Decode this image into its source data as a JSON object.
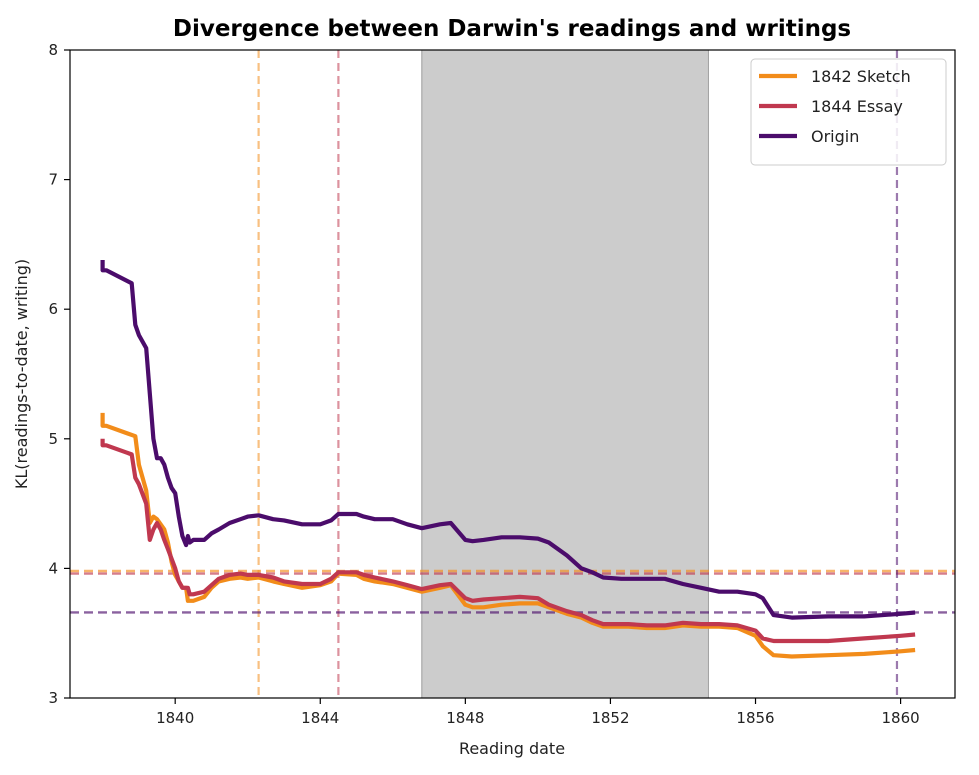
{
  "chart_data": {
    "type": "line",
    "title": "Divergence between Darwin's readings and writings",
    "xlabel": "Reading date",
    "ylabel": "KL(readings-to-date, writing)",
    "xlim": [
      1837.1,
      1861.5
    ],
    "ylim": [
      3,
      8
    ],
    "xticks": [
      1840,
      1844,
      1848,
      1852,
      1856,
      1860
    ],
    "yticks": [
      3,
      4,
      5,
      6,
      7,
      8
    ],
    "grid": false,
    "legend_position": "top-right",
    "shaded_region": {
      "x": [
        1846.8,
        1854.7
      ],
      "color": "#cccccc"
    },
    "series": [
      {
        "name": "1842 Sketch",
        "color": "#f28c1a",
        "reference_year": 1842.3,
        "reference_value": 3.98,
        "x": [
          1838.0,
          1838.0,
          1838.1,
          1838.9,
          1839.0,
          1839.2,
          1839.3,
          1839.4,
          1839.5,
          1839.7,
          1839.8,
          1839.9,
          1840.0,
          1840.1,
          1840.2,
          1840.3,
          1840.35,
          1840.4,
          1840.5,
          1840.8,
          1841.0,
          1841.2,
          1841.5,
          1841.8,
          1842.0,
          1842.3,
          1842.7,
          1843.0,
          1843.5,
          1844.0,
          1844.3,
          1844.5,
          1845.0,
          1845.2,
          1845.5,
          1846.0,
          1846.4,
          1846.8,
          1847.3,
          1847.6,
          1848.0,
          1848.2,
          1848.5,
          1849.0,
          1849.5,
          1850.0,
          1850.3,
          1850.8,
          1851.2,
          1851.5,
          1851.8,
          1852.3,
          1852.5,
          1853.0,
          1853.5,
          1854.0,
          1854.5,
          1855.0,
          1855.5,
          1856.0,
          1856.2,
          1856.5,
          1857.0,
          1858.0,
          1859.0,
          1860.0,
          1860.4
        ],
        "y": [
          5.2,
          5.1,
          5.1,
          5.02,
          4.8,
          4.6,
          4.35,
          4.4,
          4.38,
          4.3,
          4.2,
          4.05,
          3.95,
          3.9,
          3.85,
          3.85,
          3.75,
          3.75,
          3.75,
          3.78,
          3.85,
          3.9,
          3.92,
          3.93,
          3.92,
          3.93,
          3.9,
          3.88,
          3.85,
          3.87,
          3.9,
          3.96,
          3.95,
          3.92,
          3.9,
          3.88,
          3.85,
          3.82,
          3.85,
          3.87,
          3.72,
          3.7,
          3.7,
          3.72,
          3.73,
          3.73,
          3.7,
          3.65,
          3.62,
          3.58,
          3.55,
          3.55,
          3.55,
          3.54,
          3.54,
          3.56,
          3.55,
          3.55,
          3.54,
          3.48,
          3.4,
          3.33,
          3.32,
          3.33,
          3.34,
          3.36,
          3.37
        ]
      },
      {
        "name": "1844 Essay",
        "color": "#c0384f",
        "reference_year": 1844.5,
        "reference_value": 3.96,
        "x": [
          1838.0,
          1838.0,
          1838.1,
          1838.8,
          1838.9,
          1839.0,
          1839.2,
          1839.3,
          1839.4,
          1839.5,
          1839.6,
          1839.7,
          1839.8,
          1840.0,
          1840.1,
          1840.2,
          1840.35,
          1840.4,
          1840.5,
          1840.8,
          1841.0,
          1841.2,
          1841.5,
          1841.8,
          1842.0,
          1842.3,
          1842.7,
          1843.0,
          1843.5,
          1844.0,
          1844.3,
          1844.5,
          1845.0,
          1845.2,
          1845.5,
          1846.0,
          1846.4,
          1846.8,
          1847.3,
          1847.6,
          1848.0,
          1848.2,
          1848.5,
          1849.0,
          1849.5,
          1850.0,
          1850.3,
          1850.8,
          1851.2,
          1851.5,
          1851.8,
          1852.3,
          1852.5,
          1853.0,
          1853.5,
          1854.0,
          1854.5,
          1855.0,
          1855.5,
          1856.0,
          1856.2,
          1856.5,
          1857.0,
          1858.0,
          1859.0,
          1860.0,
          1860.4
        ],
        "y": [
          5.0,
          4.95,
          4.95,
          4.88,
          4.7,
          4.65,
          4.5,
          4.22,
          4.3,
          4.35,
          4.3,
          4.22,
          4.15,
          4.0,
          3.9,
          3.85,
          3.85,
          3.8,
          3.8,
          3.82,
          3.87,
          3.92,
          3.95,
          3.96,
          3.95,
          3.95,
          3.93,
          3.9,
          3.88,
          3.88,
          3.92,
          3.97,
          3.97,
          3.95,
          3.93,
          3.9,
          3.87,
          3.84,
          3.87,
          3.88,
          3.77,
          3.75,
          3.76,
          3.77,
          3.78,
          3.77,
          3.72,
          3.67,
          3.64,
          3.6,
          3.57,
          3.57,
          3.57,
          3.56,
          3.56,
          3.58,
          3.57,
          3.57,
          3.56,
          3.52,
          3.46,
          3.44,
          3.44,
          3.44,
          3.46,
          3.48,
          3.49
        ]
      },
      {
        "name": "Origin",
        "color": "#4b0c6b",
        "reference_year": 1859.9,
        "reference_value": 3.66,
        "x": [
          1838.0,
          1838.0,
          1838.1,
          1838.8,
          1838.9,
          1839.0,
          1839.2,
          1839.3,
          1839.4,
          1839.5,
          1839.6,
          1839.7,
          1839.8,
          1839.9,
          1840.0,
          1840.1,
          1840.2,
          1840.3,
          1840.35,
          1840.4,
          1840.5,
          1840.8,
          1841.0,
          1841.2,
          1841.5,
          1841.8,
          1842.0,
          1842.3,
          1842.7,
          1843.0,
          1843.5,
          1844.0,
          1844.3,
          1844.5,
          1845.0,
          1845.2,
          1845.5,
          1846.0,
          1846.4,
          1846.8,
          1847.3,
          1847.6,
          1848.0,
          1848.2,
          1848.5,
          1849.0,
          1849.5,
          1850.0,
          1850.3,
          1850.8,
          1851.2,
          1851.5,
          1851.8,
          1852.3,
          1852.5,
          1853.0,
          1853.5,
          1854.0,
          1854.5,
          1855.0,
          1855.5,
          1856.0,
          1856.2,
          1856.5,
          1857.0,
          1858.0,
          1859.0,
          1860.0,
          1860.4
        ],
        "y": [
          6.38,
          6.3,
          6.3,
          6.2,
          5.88,
          5.8,
          5.7,
          5.35,
          5.0,
          4.85,
          4.85,
          4.8,
          4.7,
          4.62,
          4.58,
          4.4,
          4.25,
          4.18,
          4.25,
          4.2,
          4.22,
          4.22,
          4.27,
          4.3,
          4.35,
          4.38,
          4.4,
          4.41,
          4.38,
          4.37,
          4.34,
          4.34,
          4.37,
          4.42,
          4.42,
          4.4,
          4.38,
          4.38,
          4.34,
          4.31,
          4.34,
          4.35,
          4.22,
          4.21,
          4.22,
          4.24,
          4.24,
          4.23,
          4.2,
          4.1,
          4.0,
          3.97,
          3.93,
          3.92,
          3.92,
          3.92,
          3.92,
          3.88,
          3.85,
          3.82,
          3.82,
          3.8,
          3.77,
          3.64,
          3.62,
          3.63,
          3.63,
          3.65,
          3.66
        ]
      }
    ]
  }
}
